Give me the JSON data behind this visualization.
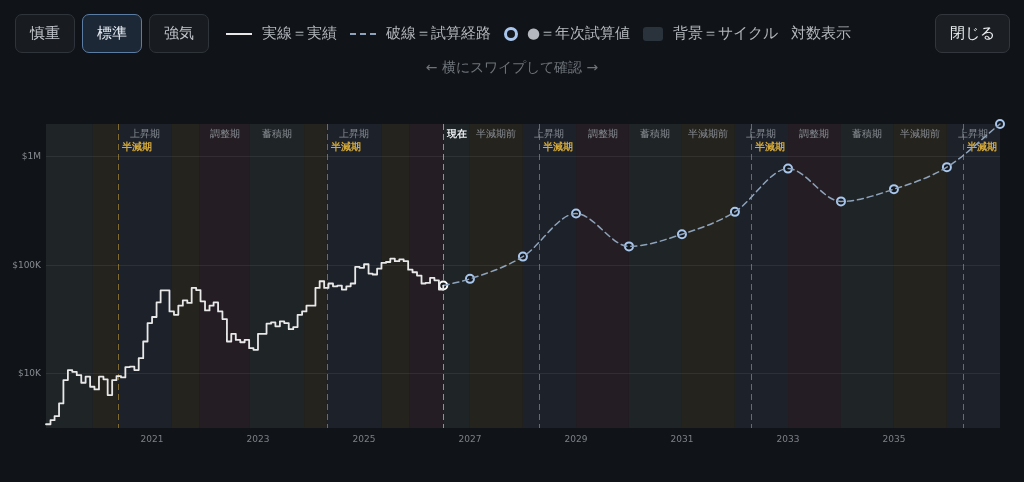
{
  "chart_data": {
    "type": "line",
    "subtitle": "← 横にスワイプして確認 →",
    "annotations": [
      "慎重",
      "標準",
      "強気",
      "背景＝サイクル",
      "対数表示",
      "閉じる"
    ],
    "series": [
      {
        "name": "実線＝実績",
        "type": "step",
        "color": "#e8e8e8",
        "line_style": "solid",
        "marker": "none",
        "x": [
          "2019-01",
          "2019-02",
          "2019-03",
          "2019-04",
          "2019-05",
          "2019-06",
          "2019-07",
          "2019-08",
          "2019-09",
          "2019-10",
          "2019-11",
          "2019-12",
          "2020-01",
          "2020-02",
          "2020-03",
          "2020-04",
          "2020-05",
          "2020-06",
          "2020-07",
          "2020-08",
          "2020-09",
          "2020-10",
          "2020-11",
          "2020-12",
          "2021-01",
          "2021-02",
          "2021-03",
          "2021-04",
          "2021-05",
          "2021-06",
          "2021-07",
          "2021-08",
          "2021-09",
          "2021-10",
          "2021-11",
          "2021-12",
          "2022-01",
          "2022-02",
          "2022-03",
          "2022-04",
          "2022-05",
          "2022-06",
          "2022-07",
          "2022-08",
          "2022-09",
          "2022-10",
          "2022-11",
          "2022-12",
          "2023-01",
          "2023-02",
          "2023-03",
          "2023-04",
          "2023-05",
          "2023-06",
          "2023-07",
          "2023-08",
          "2023-09",
          "2023-10",
          "2023-11",
          "2023-12",
          "2024-01",
          "2024-02",
          "2024-03",
          "2024-04",
          "2024-05",
          "2024-06",
          "2024-07",
          "2024-08",
          "2024-09",
          "2024-10",
          "2024-11",
          "2024-12",
          "2025-01",
          "2025-02",
          "2025-03",
          "2025-04",
          "2025-05",
          "2025-06",
          "2025-07",
          "2025-08",
          "2025-09",
          "2025-10",
          "2025-11",
          "2025-12",
          "2026-01",
          "2026-02",
          "2026-03",
          "2026-04",
          "2026-05",
          "2026-06",
          "2026-07"
        ],
        "values": [
          3420,
          3730,
          4060,
          5320,
          8740,
          10800,
          10400,
          9700,
          8250,
          9380,
          7580,
          7170,
          9380,
          8870,
          6350,
          8740,
          9520,
          9250,
          11500,
          11600,
          10800,
          13900,
          19800,
          29300,
          33300,
          45400,
          58500,
          58500,
          37500,
          34900,
          42400,
          47400,
          44900,
          61700,
          59000,
          46500,
          38300,
          42400,
          45400,
          37500,
          31900,
          19800,
          23300,
          20500,
          19500,
          20500,
          17200,
          16600,
          23300,
          23300,
          28900,
          29700,
          27300,
          30300,
          29300,
          25700,
          26900,
          34900,
          37500,
          42400,
          42400,
          61700,
          71100,
          61700,
          67800,
          63900,
          64900,
          59600,
          63900,
          67800,
          96500,
          94500,
          102000,
          83700,
          82100,
          92800,
          105000,
          107000,
          115000,
          109000,
          113000,
          109000,
          91000,
          86100,
          80300,
          67800,
          68700,
          76300,
          72600,
          59600,
          64900
        ]
      },
      {
        "name": "破線＝試算経路",
        "color": "#8ea3bb",
        "line_style": "dashed",
        "marker": "none",
        "x": [
          "2026-07",
          "2027",
          "2028",
          "2029",
          "2030",
          "2031",
          "2032",
          "2033",
          "2034",
          "2035",
          "2036",
          "2037"
        ],
        "values": [
          64900,
          74800,
          120000,
          299000,
          149000,
          193000,
          310000,
          776000,
          387000,
          502000,
          801000,
          2000000
        ]
      },
      {
        "name": "●＝年次試算値",
        "type": "scatter",
        "color": "#a9c6ec",
        "marker": "circle",
        "x": [
          "2027",
          "2028",
          "2029",
          "2030",
          "2031",
          "2032",
          "2033",
          "2034",
          "2035",
          "2036",
          "2037"
        ],
        "values": [
          74800,
          120000,
          299000,
          149000,
          193000,
          310000,
          776000,
          387000,
          502000,
          801000,
          2000000
        ]
      },
      {
        "type": "scatter",
        "color": "#ffffff",
        "marker": "circle",
        "x": [
          "2026-07"
        ],
        "values": [
          64900
        ]
      }
    ],
    "xlim": [
      "2019",
      "2037"
    ],
    "xticks": [
      "2021",
      "2023",
      "2025",
      "2027",
      "2029",
      "2031",
      "2033",
      "2035"
    ],
    "ylim": [
      3160,
      2000000
    ],
    "yticks": [
      {
        "value": 10000,
        "label": "$10K"
      },
      {
        "value": 100000,
        "label": "$100K"
      },
      {
        "value": 1000000,
        "label": "$1M"
      }
    ],
    "log": true,
    "grid": "y",
    "legend": "top",
    "bands": [
      {
        "axis": "x",
        "from": "2019-01",
        "to": "2019-11-20",
        "color": "#1f2427"
      },
      {
        "axis": "x",
        "from": "2019-11-20",
        "to": "2020-05-11",
        "color": "#25231e"
      },
      {
        "axis": "x",
        "from": "2020-05-11",
        "to": "2021-05-15",
        "label": "上昇期",
        "color": "#1c212a"
      },
      {
        "axis": "x",
        "from": "2021-05-15",
        "to": "2021-11-25",
        "color": "#25231e"
      },
      {
        "axis": "x",
        "from": "2021-11-25",
        "to": "2022-11-05",
        "label": "調整期",
        "color": "#241e24"
      },
      {
        "axis": "x",
        "from": "2022-11-05",
        "to": "2023-11-15",
        "label": "蓄積期",
        "color": "#1f2427"
      },
      {
        "axis": "x",
        "from": "2023-11-15",
        "to": "2024-04-20",
        "color": "#25231e"
      },
      {
        "axis": "x",
        "from": "2024-04-20",
        "to": "2025-05-01",
        "label": "上昇期",
        "color": "#1c212a"
      },
      {
        "axis": "x",
        "from": "2025-05-01",
        "to": "2025-11-10",
        "color": "#25231e"
      },
      {
        "axis": "x",
        "from": "2025-11-10",
        "to": "2026-07",
        "color": "#241e24"
      },
      {
        "axis": "x",
        "from": "2026-07",
        "to": "2027",
        "color": "#1f2427"
      },
      {
        "axis": "x",
        "from": "2027",
        "to": "2028",
        "label": "半減期前",
        "color": "#25231e"
      },
      {
        "axis": "x",
        "from": "2028",
        "to": "2029",
        "label": "上昇期",
        "color": "#1c212a"
      },
      {
        "axis": "x",
        "from": "2029",
        "to": "2030",
        "label": "調整期",
        "color": "#241e24"
      },
      {
        "axis": "x",
        "from": "2030",
        "to": "2031",
        "label": "蓄積期",
        "color": "#1f2427"
      },
      {
        "axis": "x",
        "from": "2031",
        "to": "2032",
        "label": "半減期前",
        "color": "#25231e"
      },
      {
        "axis": "x",
        "from": "2032",
        "to": "2033",
        "label": "上昇期",
        "color": "#1c212a"
      },
      {
        "axis": "x",
        "from": "2033",
        "to": "2034",
        "label": "調整期",
        "color": "#241e24"
      },
      {
        "axis": "x",
        "from": "2034",
        "to": "2035",
        "label": "蓄積期",
        "color": "#1f2427"
      },
      {
        "axis": "x",
        "from": "2035",
        "to": "2036",
        "label": "半減期前",
        "color": "#25231e"
      },
      {
        "axis": "x",
        "from": "2036",
        "to": "2037",
        "label": "上昇期",
        "color": "#1c212a"
      }
    ],
    "ref_lines": [
      {
        "axis": "x",
        "value": "2020-05-11",
        "label": "半減期",
        "color": "#d2a83c",
        "line_style": "dashed"
      },
      {
        "axis": "x",
        "value": "2024-04-20",
        "label": "半減期",
        "color": "#d2a83c",
        "line_style": "dashed"
      },
      {
        "axis": "x",
        "value": "2026-07",
        "label": "現在",
        "color": "#eceef1",
        "line_style": "dashed"
      },
      {
        "axis": "x",
        "value": "2028-04-20",
        "label": "半減期",
        "color": "#d2a83c",
        "line_style": "dashed"
      },
      {
        "axis": "x",
        "value": "2032-04-20",
        "label": "半減期",
        "color": "#d2a83c",
        "line_style": "dashed"
      },
      {
        "axis": "x",
        "value": "2036-04-20",
        "label": "半減期",
        "color": "#d2a83c",
        "line_style": "dashed"
      }
    ]
  }
}
